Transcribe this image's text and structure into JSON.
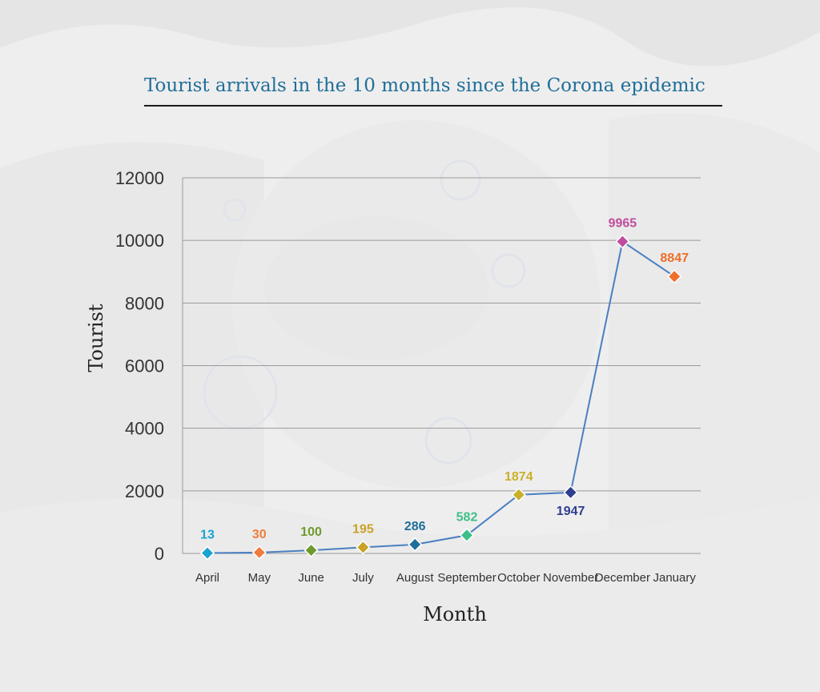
{
  "title": "Tourist arrivals in the 10 months since the Corona epidemic",
  "colors": {
    "line": "#4a7fc1",
    "grid": "#9a9a9a",
    "title": "#1f6f9a",
    "points": [
      "#1aa3cf",
      "#f07c3c",
      "#6f9a2e",
      "#c9a227",
      "#1f6f9a",
      "#3dbf8a",
      "#c9b02a",
      "#2e3f8f",
      "#c04c9e",
      "#ee6e2a"
    ]
  },
  "chart_data": {
    "type": "line",
    "title": "Tourist arrivals in the 10 months since the Corona epidemic",
    "xlabel": "Month",
    "ylabel": "Tourist",
    "categories": [
      "April",
      "May",
      "June",
      "July",
      "August",
      "September",
      "October",
      "November",
      "December",
      "January"
    ],
    "values": [
      13,
      30,
      100,
      195,
      286,
      582,
      1874,
      1947,
      9965,
      8847
    ],
    "data_labels": [
      "13",
      "30",
      "100",
      "195",
      "286",
      "582",
      "1874",
      "1947",
      "9965",
      "8847"
    ],
    "ylim": [
      0,
      12000
    ],
    "yticks": [
      "0",
      "2000",
      "4000",
      "6000",
      "8000",
      "10000",
      "12000"
    ],
    "grid": true,
    "marker": "diamond",
    "legend": "none"
  }
}
